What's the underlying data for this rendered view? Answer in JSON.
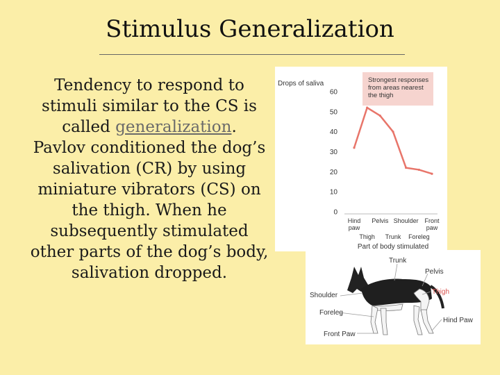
{
  "slide": {
    "title": "Stimulus Generalization",
    "para1_prefix": "Tendency to respond to stimuli similar to the CS is called ",
    "para1_link": "generalization",
    "para1_suffix": ".",
    "para2": "Pavlov conditioned the dog’s salivation (CR) by using miniature vibrators (CS) on the thigh. When he subsequently stimulated other parts of the dog’s body, salivation dropped."
  },
  "chart_data": {
    "type": "line",
    "ylabel": "Drops of saliva",
    "xlabel": "Part of body stimulated",
    "ylim": [
      0,
      60
    ],
    "yticks": [
      "0",
      "10",
      "20",
      "30",
      "40",
      "50",
      "60"
    ],
    "categories": [
      "Hind paw",
      "Thigh",
      "Pelvis",
      "Trunk",
      "Shoulder",
      "Foreleg",
      "Front paw"
    ],
    "tick_labels": {
      "top_row": [
        "Hind",
        "Pelvis",
        "Shoulder",
        "Front"
      ],
      "second_row": [
        "paw",
        "",
        "",
        "paw"
      ],
      "bottom_row": [
        "Thigh",
        "Trunk",
        "Foreleg"
      ]
    },
    "values": [
      32,
      52,
      48,
      40,
      22,
      21,
      19
    ],
    "annotation": [
      "Strongest responses",
      "from areas nearest",
      "the thigh"
    ],
    "line_color": "#e8756a",
    "annotation_bg": "#f6d4cf"
  },
  "dog_diagram": {
    "labels": {
      "trunk": "Trunk",
      "pelvis": "Pelvis",
      "thigh": "Thigh",
      "shoulder": "Shoulder",
      "foreleg": "Foreleg",
      "hind_paw": "Hind Paw",
      "front_paw": "Front Paw"
    },
    "highlight_color": "#d9534f"
  }
}
